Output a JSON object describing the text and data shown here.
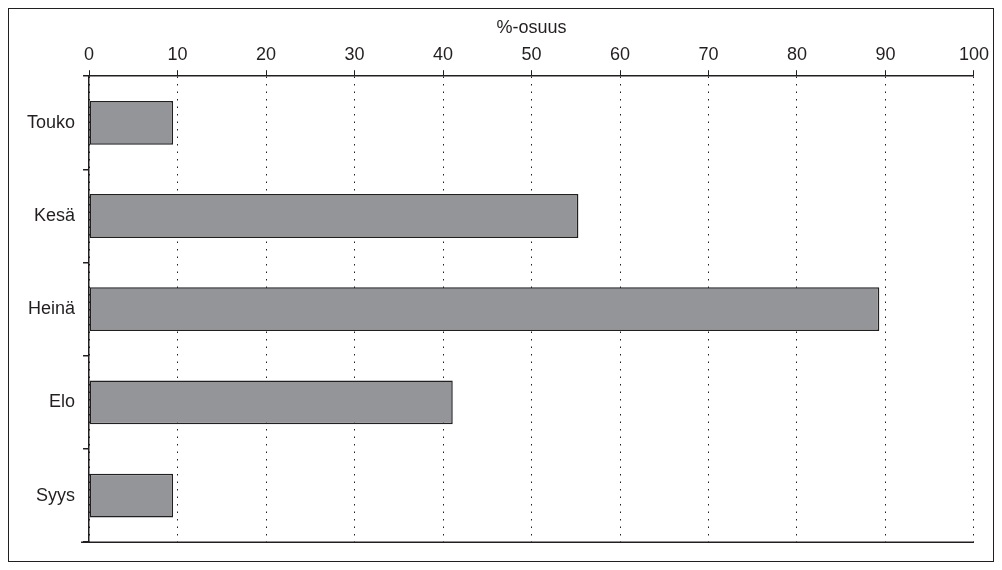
{
  "chart_data": {
    "type": "bar",
    "orientation": "horizontal",
    "xlabel": "%-osuus",
    "categories": [
      "Touko",
      "Kesä",
      "Heinä",
      "Elo",
      "Syys"
    ],
    "values": [
      9.5,
      55.3,
      89.3,
      41.1,
      9.5
    ],
    "color": "#939598",
    "xlim": [
      0,
      100
    ],
    "xticks": [
      0,
      10,
      20,
      30,
      40,
      50,
      60,
      70,
      80,
      90,
      100
    ],
    "grid": "x",
    "legend": false
  }
}
